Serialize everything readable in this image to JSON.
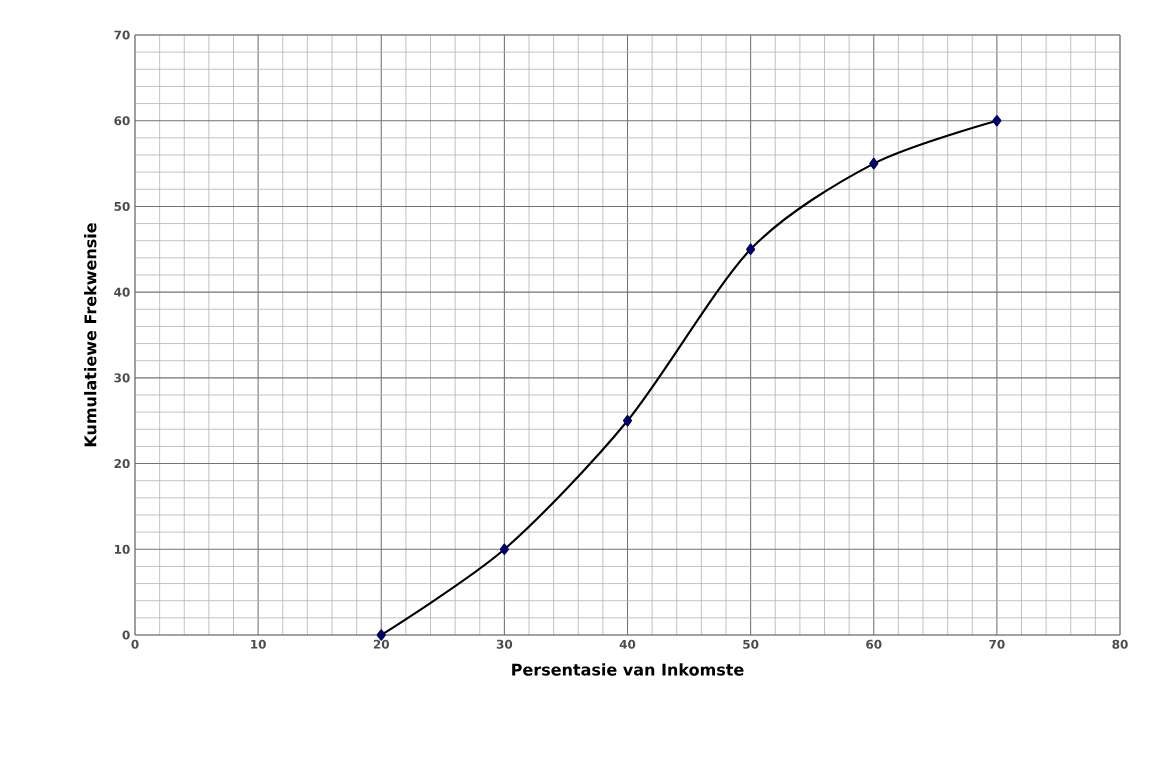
{
  "chart_data": {
    "type": "line",
    "xlabel": "Persentasie van Inkomste",
    "ylabel": "Kumulatiewe Frekwensie",
    "x": [
      20,
      30,
      40,
      50,
      60,
      70
    ],
    "series": [
      {
        "color": "#000000",
        "values": [
          0,
          10,
          25,
          45,
          55,
          60
        ]
      }
    ],
    "xlim": [
      0,
      80
    ],
    "xticks": [
      0,
      10,
      20,
      30,
      40,
      50,
      60,
      70,
      80
    ],
    "ylim": [
      0,
      70
    ],
    "yticks": [
      0,
      10,
      20,
      30,
      40,
      50,
      60,
      70
    ],
    "grid": true,
    "marker": "diamond",
    "line_style": "solid"
  }
}
